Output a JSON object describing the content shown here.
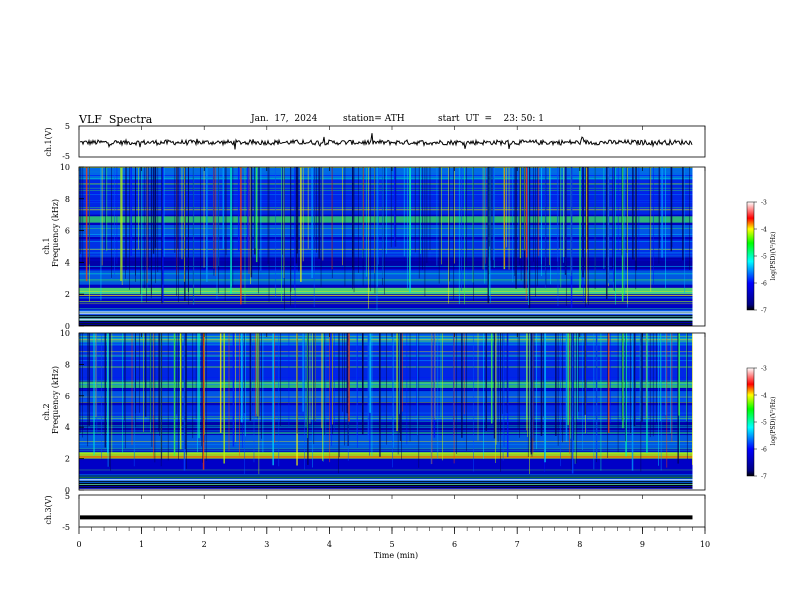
{
  "header": {
    "title": "VLF  Spectra",
    "date": "Jan.  17,  2024",
    "station": "station= ATH",
    "start_ut": "start  UT  =    23: 50: 1"
  },
  "colors": {
    "background": "#ffffff",
    "axis": "#000000",
    "cb_low": "#000000",
    "cb_mid_low": "#0000ff",
    "cb_mid": "#00ffff",
    "cb_mid_high": "#00ff00",
    "cb_high": "#ff0000",
    "cb_top": "#ffffff"
  },
  "chart_data": [
    {
      "type": "line",
      "name_label": "ch.1(V)",
      "ylabel": "ch.1(V)",
      "ylim": [
        -5,
        5
      ],
      "yticks": [
        "5",
        "-5"
      ],
      "x_range_min": [
        0,
        9.8
      ],
      "approx_level": -0.3
    },
    {
      "type": "heatmap",
      "ylabel": "Frequency (kHz)",
      "channel_label": "ch.1",
      "ylim": [
        0,
        10
      ],
      "yticks": [
        "0",
        "2",
        "4",
        "6",
        "8",
        "10"
      ],
      "colorbar_label": "log(PSD)(V²/Hz)",
      "colorbar_ticks": [
        "-3",
        "-4",
        "-5",
        "-6",
        "-7"
      ],
      "colorbar_range": [
        -7,
        -3
      ]
    },
    {
      "type": "heatmap",
      "ylabel": "Frequency (kHz)",
      "channel_label": "ch.2",
      "ylim": [
        0,
        10
      ],
      "yticks": [
        "0",
        "2",
        "4",
        "6",
        "8",
        "10"
      ],
      "colorbar_label": "log(PSD)(V²/Hz)",
      "colorbar_ticks": [
        "-3",
        "-4",
        "-5",
        "-6",
        "-7"
      ],
      "colorbar_range": [
        -7,
        -3
      ]
    },
    {
      "type": "line",
      "ylabel": "ch.3(V)",
      "ylim": [
        -5,
        5
      ],
      "yticks": [
        "5",
        "-5"
      ],
      "approx_level": -2
    }
  ],
  "xaxis": {
    "label": "Time  (min)",
    "xlim": [
      0,
      10
    ],
    "ticks": [
      "0",
      "1",
      "2",
      "3",
      "4",
      "5",
      "6",
      "7",
      "8",
      "9",
      "10"
    ]
  }
}
